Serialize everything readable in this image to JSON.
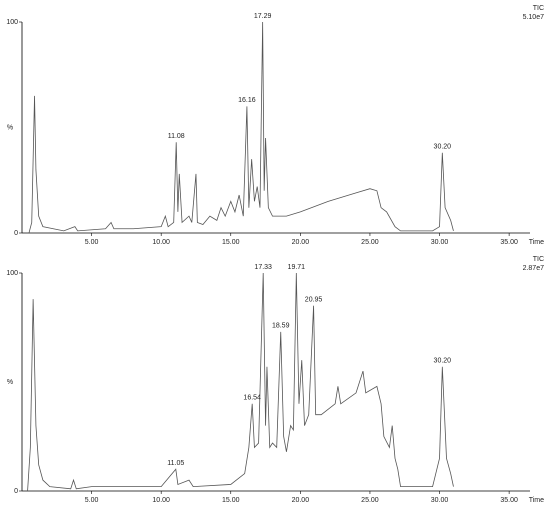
{
  "chart_data": [
    {
      "type": "line",
      "trace_label": "TIC",
      "scale": "5.10e7",
      "ylabel": "%",
      "xlabel": "Time",
      "xlim": [
        0,
        36.5
      ],
      "ylim": [
        0,
        100
      ],
      "xticks": [
        {
          "value": 5,
          "label": "5.00"
        },
        {
          "value": 10,
          "label": "10.00"
        },
        {
          "value": 15,
          "label": "15.00"
        },
        {
          "value": 20,
          "label": "20.00"
        },
        {
          "value": 25,
          "label": "25.00"
        },
        {
          "value": 30,
          "label": "30.00"
        },
        {
          "value": 35,
          "label": "35.00"
        }
      ],
      "yticks": [
        0,
        100
      ],
      "x": [
        0.5,
        0.7,
        0.9,
        1.0,
        1.2,
        1.5,
        3,
        3.8,
        4,
        6,
        6.4,
        6.6,
        8,
        10,
        10.3,
        10.5,
        10.9,
        11.08,
        11.2,
        11.3,
        11.5,
        12,
        12.2,
        12.5,
        12.6,
        13,
        13.5,
        14,
        14.3,
        14.6,
        15,
        15.3,
        15.6,
        15.9,
        16.16,
        16.3,
        16.5,
        16.7,
        16.9,
        17.1,
        17.29,
        17.4,
        17.5,
        17.7,
        18,
        19,
        20,
        22,
        24,
        25,
        25.5,
        25.8,
        26.2,
        26.8,
        27.2,
        29.5,
        30,
        30.2,
        30.4,
        30.8,
        31
      ],
      "series": [
        {
          "color": "#555555",
          "values": [
            0,
            5,
            65,
            30,
            8,
            3,
            1,
            3,
            1,
            2,
            5,
            2,
            2,
            3,
            8,
            3,
            5,
            43,
            10,
            28,
            5,
            8,
            5,
            28,
            5,
            4,
            8,
            6,
            12,
            8,
            15,
            10,
            18,
            8,
            60,
            12,
            35,
            15,
            22,
            12,
            100,
            20,
            45,
            12,
            8,
            8,
            10,
            15,
            19,
            21,
            20,
            12,
            10,
            3,
            1,
            1,
            3,
            38,
            12,
            6,
            1
          ]
        }
      ],
      "annotations": [
        {
          "label": "11.08",
          "x": 11.08,
          "y": 43
        },
        {
          "label": "16.16",
          "x": 16.16,
          "y": 60
        },
        {
          "label": "17.29",
          "x": 17.29,
          "y": 100
        },
        {
          "label": "30.20",
          "x": 30.2,
          "y": 38
        }
      ]
    },
    {
      "type": "line",
      "trace_label": "TIC",
      "scale": "2.87e7",
      "ylabel": "%",
      "xlabel": "Time",
      "xlim": [
        0,
        36.5
      ],
      "ylim": [
        0,
        100
      ],
      "xticks": [
        {
          "value": 5,
          "label": "5.00"
        },
        {
          "value": 10,
          "label": "10.00"
        },
        {
          "value": 15,
          "label": "15.00"
        },
        {
          "value": 20,
          "label": "20.00"
        },
        {
          "value": 25,
          "label": "25.00"
        },
        {
          "value": 30,
          "label": "30.00"
        },
        {
          "value": 35,
          "label": "35.00"
        }
      ],
      "yticks": [
        0,
        100
      ],
      "x": [
        0.4,
        0.6,
        0.8,
        1.0,
        1.2,
        1.5,
        2,
        3.5,
        3.7,
        3.9,
        5,
        8,
        10,
        11.05,
        11.2,
        12,
        12.3,
        15,
        16,
        16.3,
        16.54,
        16.7,
        17,
        17.33,
        17.5,
        17.6,
        17.8,
        18,
        18.3,
        18.59,
        18.8,
        19,
        19.3,
        19.5,
        19.71,
        19.9,
        20.1,
        20.3,
        20.6,
        20.95,
        21.1,
        21.5,
        22.5,
        22.7,
        22.9,
        24,
        24.5,
        24.7,
        25.5,
        25.8,
        26,
        26.4,
        26.6,
        26.8,
        27,
        27.2,
        29.5,
        30,
        30.2,
        30.5,
        30.8,
        31
      ],
      "series": [
        {
          "color": "#555555",
          "values": [
            0,
            20,
            88,
            30,
            12,
            5,
            2,
            1,
            5,
            1,
            2,
            2,
            2,
            10,
            3,
            5,
            2,
            3,
            8,
            20,
            40,
            20,
            22,
            100,
            30,
            57,
            20,
            22,
            20,
            73,
            25,
            18,
            30,
            28,
            100,
            40,
            60,
            30,
            35,
            85,
            35,
            35,
            40,
            48,
            40,
            45,
            55,
            45,
            48,
            40,
            25,
            20,
            30,
            15,
            10,
            2,
            2,
            15,
            57,
            15,
            8,
            2
          ]
        }
      ],
      "annotations": [
        {
          "label": "11.05",
          "x": 11.05,
          "y": 10
        },
        {
          "label": "16.54",
          "x": 16.54,
          "y": 40
        },
        {
          "label": "17.33",
          "x": 17.33,
          "y": 100
        },
        {
          "label": "18.59",
          "x": 18.59,
          "y": 73
        },
        {
          "label": "19.71",
          "x": 19.71,
          "y": 100
        },
        {
          "label": "20.95",
          "x": 20.95,
          "y": 85
        },
        {
          "label": "30.20",
          "x": 30.2,
          "y": 57
        }
      ]
    }
  ]
}
